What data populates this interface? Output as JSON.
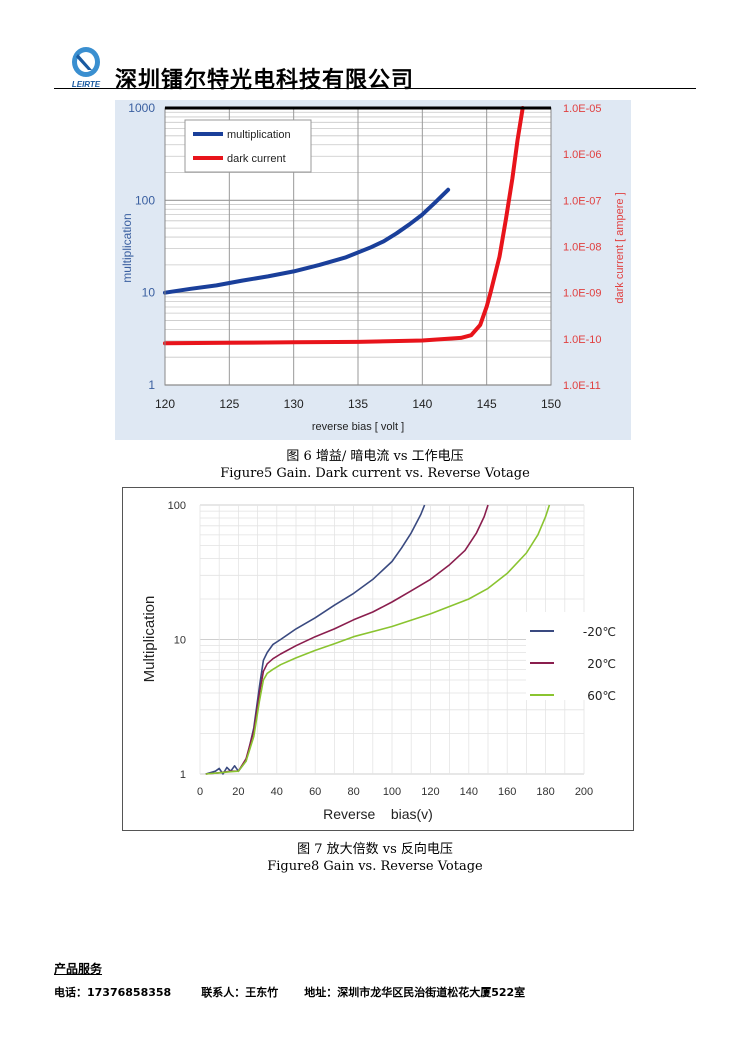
{
  "header": {
    "logo_text": "LEIRTE",
    "company_name": "深圳镭尔特光电科技有限公司"
  },
  "figure1": {
    "caption_cn": "图 6 增益/ 暗电流 vs 工作电压",
    "caption_en": "Figure5  Gain. Dark current vs. Reverse Votage"
  },
  "figure2": {
    "caption_cn": "图 7 放大倍数 vs 反向电压",
    "caption_en": "Figure8 Gain vs. Reverse Votage"
  },
  "footer": {
    "section_title": "产品服务",
    "phone": "电话：17376858358",
    "contact": "联系人：王东竹",
    "address": "地址：深圳市龙华区民治街道松花大厦522室"
  },
  "chart_data": [
    {
      "type": "line",
      "xlabel": "reverse bias [ volt ]",
      "ylabel": "multiplication",
      "y2label": "dark current [ ampere ]",
      "xlim": [
        120,
        150
      ],
      "ylim": [
        1,
        1000
      ],
      "y2lim": [
        1e-11,
        1e-05
      ],
      "yscale": "log",
      "y2scale": "log",
      "x_ticks": [
        "120",
        "125",
        "130",
        "135",
        "140",
        "145",
        "150"
      ],
      "y_ticks": [
        "1",
        "10",
        "100",
        "1000"
      ],
      "y2_ticks": [
        "1.0E-11",
        "1.0E-10",
        "1.0E-09",
        "1.0E-08",
        "1.0E-07",
        "1.0E-06",
        "1.0E-05"
      ],
      "legend_position": "top-left",
      "grid": true,
      "series": [
        {
          "name": "multiplication",
          "axis": "left",
          "color": "#1a3f9a",
          "x": [
            120,
            122,
            124,
            126,
            128,
            130,
            132,
            134,
            136,
            137,
            138,
            139,
            140,
            141,
            142
          ],
          "y": [
            10,
            11,
            12,
            13.5,
            15,
            17,
            20,
            24,
            31,
            36,
            44,
            55,
            70,
            95,
            130
          ]
        },
        {
          "name": "dark current",
          "axis": "right",
          "color": "#e8141b",
          "x": [
            120,
            125,
            130,
            135,
            140,
            143,
            143.8,
            144.5,
            145,
            145.3,
            146,
            146.5,
            147,
            147.4,
            147.8
          ],
          "y": [
            8e-11,
            8.2e-11,
            8.4e-11,
            8.6e-11,
            9.2e-11,
            1.05e-10,
            1.2e-10,
            2e-10,
            5e-10,
            1e-09,
            6e-09,
            4e-08,
            3e-07,
            2e-06,
            1e-05
          ]
        }
      ]
    },
    {
      "type": "line",
      "xlabel": "Reverse    bias(v)",
      "ylabel": "Multiplication",
      "xlim": [
        0,
        200
      ],
      "ylim": [
        1,
        100
      ],
      "yscale": "log",
      "x_ticks": [
        "0",
        "20",
        "40",
        "60",
        "80",
        "100",
        "120",
        "140",
        "160",
        "180",
        "200"
      ],
      "y_ticks": [
        "1",
        "10",
        "100"
      ],
      "legend_position": "right",
      "grid": true,
      "series": [
        {
          "name": "-20℃",
          "color": "#3a4a80",
          "x": [
            3,
            8,
            10,
            12,
            14,
            16,
            18,
            20,
            24,
            28,
            31,
            33,
            35,
            38,
            42,
            50,
            60,
            70,
            80,
            90,
            100,
            105,
            110,
            115,
            117
          ],
          "y": [
            1,
            1.05,
            1.1,
            1.0,
            1.12,
            1.05,
            1.15,
            1.05,
            1.25,
            2.2,
            4.5,
            7,
            8,
            9.2,
            10,
            12,
            14.5,
            18,
            22,
            28,
            38,
            48,
            62,
            85,
            100
          ]
        },
        {
          "name": "20℃",
          "color": "#8a1e4e",
          "x": [
            3,
            10,
            16,
            20,
            24,
            28,
            31,
            33,
            35,
            38,
            42,
            50,
            60,
            70,
            80,
            90,
            100,
            110,
            120,
            130,
            138,
            144,
            148,
            150
          ],
          "y": [
            1,
            1.02,
            1.05,
            1.05,
            1.3,
            2.1,
            4,
            5.8,
            6.6,
            7.2,
            7.8,
            9,
            10.5,
            12,
            14,
            16,
            19,
            23,
            28,
            36,
            46,
            62,
            82,
            100
          ]
        },
        {
          "name": "60℃",
          "color": "#8ac430",
          "x": [
            3,
            10,
            16,
            20,
            24,
            28,
            31,
            33,
            35,
            38,
            42,
            50,
            60,
            70,
            80,
            100,
            120,
            140,
            150,
            160,
            170,
            176,
            180,
            182
          ],
          "y": [
            1,
            1.02,
            1.04,
            1.05,
            1.25,
            1.9,
            3.5,
            5,
            5.6,
            6,
            6.5,
            7.3,
            8.3,
            9.3,
            10.5,
            12.5,
            15.5,
            20,
            24,
            31,
            44,
            60,
            82,
            100
          ]
        }
      ]
    }
  ]
}
